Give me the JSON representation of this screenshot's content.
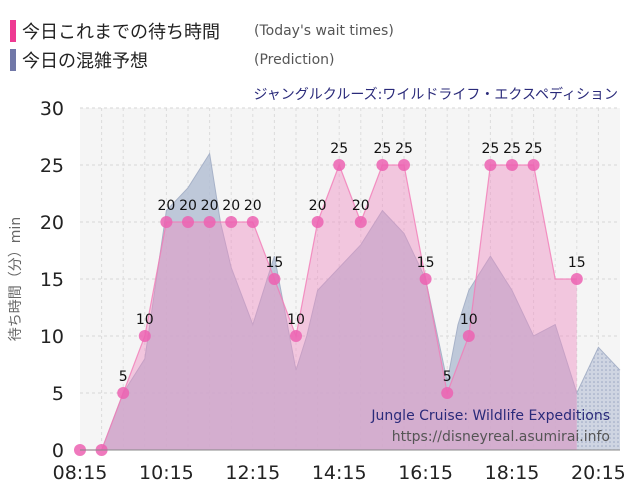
{
  "legend": [
    {
      "label": "今日これまでの待ち時間",
      "sub": "(Today's wait times)",
      "color": "#ee3a92"
    },
    {
      "label": "今日の混雑予想",
      "sub": "(Prediction)",
      "color": "#7178a8"
    }
  ],
  "chart_data": {
    "type": "area",
    "title": "ジャングルクルーズ:ワイルドライフ・エクスペディション",
    "watermark": [
      "Jungle Cruise: Wildlife Expeditions",
      "https://disneyreal.asumirai.info"
    ],
    "ylabel": "待ち時間（分）min",
    "ylim": [
      0,
      30
    ],
    "yticks": [
      0,
      5,
      10,
      15,
      20,
      25,
      30
    ],
    "xticks": [
      "08:15",
      "10:15",
      "12:15",
      "14:15",
      "16:15",
      "18:15",
      "20:15"
    ],
    "xlim": [
      "08:15",
      "20:45"
    ],
    "series": [
      {
        "kind": "actual",
        "x": [
          "08:15",
          "08:45",
          "09:15",
          "09:45",
          "10:15",
          "10:45",
          "11:15",
          "11:45",
          "12:15",
          "12:45",
          "13:15",
          "13:45",
          "14:15",
          "14:45",
          "15:15",
          "15:45",
          "16:15",
          "16:45",
          "17:15",
          "17:45",
          "18:15",
          "18:45",
          "19:15",
          "19:45"
        ],
        "values": [
          0,
          0,
          5,
          10,
          20,
          20,
          20,
          20,
          20,
          15,
          10,
          20,
          25,
          20,
          25,
          25,
          15,
          5,
          10,
          25,
          25,
          25,
          15,
          15
        ],
        "labels": [
          "",
          "",
          "5",
          "10",
          "20",
          "20",
          "20",
          "20",
          "20",
          "15",
          "10",
          "20",
          "25",
          "20",
          "25",
          "25",
          "15",
          "5",
          "10",
          "25",
          "25",
          "25",
          "",
          "15"
        ],
        "markers": [
          true,
          true,
          true,
          true,
          true,
          true,
          true,
          true,
          true,
          true,
          true,
          true,
          true,
          true,
          true,
          true,
          true,
          true,
          true,
          true,
          true,
          true,
          false,
          true
        ],
        "color": "#ee3a92"
      },
      {
        "kind": "prediction",
        "x": [
          "08:15",
          "08:45",
          "09:15",
          "09:45",
          "10:15",
          "10:45",
          "11:15",
          "11:30",
          "11:45",
          "12:15",
          "12:45",
          "13:15",
          "13:30",
          "13:45",
          "14:15",
          "14:45",
          "15:15",
          "15:45",
          "16:15",
          "16:45",
          "17:00",
          "17:15",
          "17:45",
          "18:15",
          "18:45",
          "19:15",
          "19:45",
          "20:15",
          "20:45"
        ],
        "values": [
          0,
          0,
          5,
          8,
          21,
          23,
          26,
          20,
          16,
          11,
          17,
          7,
          10,
          14,
          16,
          18,
          21,
          19,
          15,
          6,
          11,
          14,
          17,
          14,
          10,
          11,
          5,
          9,
          7
        ],
        "color": "#7178a8"
      }
    ],
    "actual_until": "19:45",
    "grid": true
  }
}
